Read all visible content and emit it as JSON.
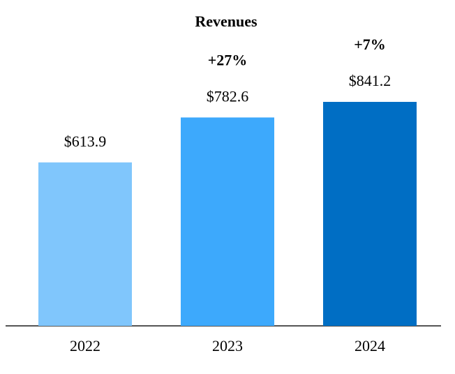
{
  "chart_data": {
    "type": "bar",
    "title": "Revenues",
    "categories": [
      "2022",
      "2023",
      "2024"
    ],
    "values": [
      613.9,
      782.6,
      841.2
    ],
    "value_labels": [
      "$613.9",
      "$782.6",
      "$841.2"
    ],
    "growth_labels": [
      null,
      "+27%",
      "+7%"
    ],
    "colors": [
      "#80c6fc",
      "#3da9fc",
      "#006ec4"
    ]
  }
}
